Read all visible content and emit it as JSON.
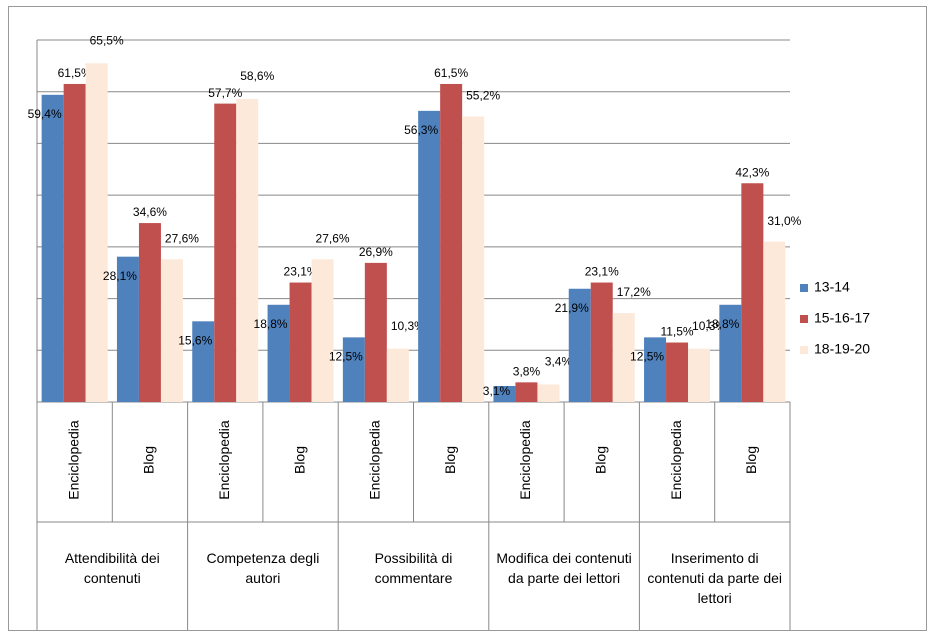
{
  "chart_data": {
    "type": "bar",
    "categories": [
      "Enciclopedia",
      "Blog",
      "Enciclopedia",
      "Blog",
      "Enciclopedia",
      "Blog",
      "Enciclopedia",
      "Blog",
      "Enciclopedia",
      "Blog"
    ],
    "groups": [
      "Attendibilità dei contenuti",
      "Competenza degli autori",
      "Possibilità di commentare",
      "Modifica dei contenuti da parte dei lettori",
      "Inserimento di contenuti da parte dei lettori"
    ],
    "series": [
      {
        "name": "13-14",
        "color": "#4f81bd",
        "values": [
          59.4,
          28.1,
          15.6,
          18.8,
          12.5,
          56.3,
          3.1,
          21.9,
          12.5,
          18.8
        ],
        "value_labels": [
          "59,4%",
          "28,1%",
          "15,6%",
          "18,8%",
          "12,5%",
          "56,3%",
          "3,1%",
          "21,9%",
          "12,5%",
          "18,8%"
        ]
      },
      {
        "name": "15-16-17",
        "color": "#c0504d",
        "values": [
          61.5,
          34.6,
          57.7,
          23.1,
          26.9,
          61.5,
          3.8,
          23.1,
          11.5,
          42.3
        ],
        "value_labels": [
          "61,5%",
          "34,6%",
          "57,7%",
          "23,1%",
          "26,9%",
          "61,5%",
          "3,8%",
          "23,1%",
          "11,5%",
          "42,3%"
        ]
      },
      {
        "name": "18-19-20",
        "color": "#fde9d9",
        "values": [
          65.5,
          27.6,
          58.6,
          27.6,
          10.3,
          55.2,
          3.4,
          17.2,
          10.3,
          31.0
        ],
        "value_labels": [
          "65,5%",
          "27,6%",
          "58,6%",
          "27,6%",
          "10,3%",
          "55,2%",
          "3,4%",
          "17,2%",
          "10,3%",
          "31,0%"
        ]
      }
    ],
    "ylim": [
      0,
      70
    ],
    "yticks": [
      0,
      10,
      20,
      30,
      40,
      50,
      60,
      70
    ],
    "grid": true,
    "legend": "right"
  }
}
